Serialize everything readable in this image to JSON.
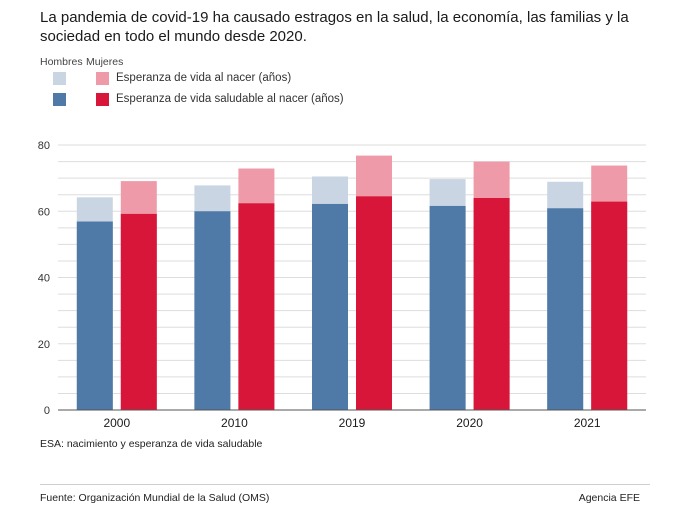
{
  "title": "La pandemia de covid-19 ha causado estragos en la salud, la economía, las familias y la sociedad en todo el mundo desde 2020.",
  "legend": {
    "hombres": "Hombres",
    "mujeres": "Mujeres",
    "row1": "Esperanza de vida al nacer (años)",
    "row2": "Esperanza de vida saludable al nacer (años)"
  },
  "colors": {
    "men_life": "#c9d5e2",
    "men_healthy": "#4f79a6",
    "women_life": "#ef9aa8",
    "women_healthy": "#d8163a",
    "grid": "#dddddd",
    "axis": "#555555"
  },
  "chart_data": {
    "type": "bar",
    "categories": [
      "2000",
      "2010",
      "2019",
      "2020",
      "2021"
    ],
    "series": [
      {
        "name": "Hombres",
        "measure": "Esperanza de vida al nacer (años)",
        "values": [
          64.2,
          67.8,
          70.5,
          69.7,
          68.9
        ]
      },
      {
        "name": "Hombres",
        "measure": "Esperanza de vida saludable al nacer (años)",
        "values": [
          56.9,
          60.0,
          62.2,
          61.6,
          60.9
        ]
      },
      {
        "name": "Mujeres",
        "measure": "Esperanza de vida al nacer (años)",
        "values": [
          69.1,
          72.9,
          76.8,
          75.0,
          73.8
        ]
      },
      {
        "name": "Mujeres",
        "measure": "Esperanza de vida saludable al nacer (años)",
        "values": [
          59.2,
          62.4,
          64.5,
          64.0,
          62.9
        ]
      }
    ],
    "ylim": [
      0,
      80
    ],
    "yticks": [
      0,
      20,
      40,
      60,
      80
    ],
    "grid": true,
    "legend_position": "top-left"
  },
  "footnote": "ESA: nacimiento y esperanza de vida saludable",
  "source": "Fuente: Organización Mundial de la Salud (OMS)",
  "agency": "Agencia EFE"
}
